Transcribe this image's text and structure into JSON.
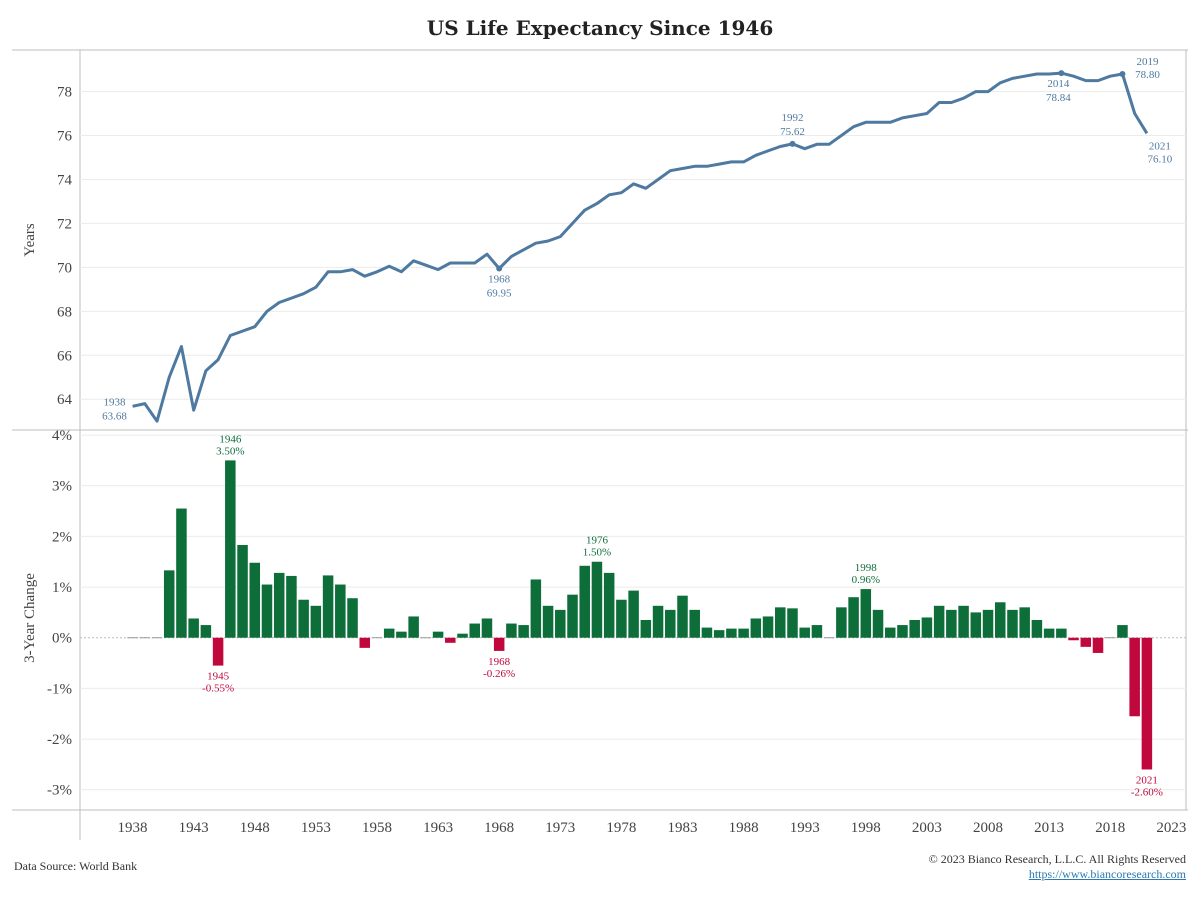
{
  "title": "US Life Expectancy Since 1946",
  "footer": {
    "source": "Data Source: World Bank",
    "copyright": "© 2023 Bianco Research, L.L.C. All Rights Reserved",
    "url": "https://www.biancoresearch.com"
  },
  "colors": {
    "line": "#4e79a0",
    "positive": "#0e6e3a",
    "negative": "#c0083d",
    "gridline": "#ececec",
    "axis": "#bdbdbd"
  },
  "chart_data": [
    {
      "type": "line",
      "ylabel": "Years",
      "ylim": [
        62.6,
        79.8
      ],
      "yticks": [
        64,
        66,
        68,
        70,
        72,
        74,
        76,
        78
      ],
      "series": [
        {
          "x": [
            1938,
            1939,
            1940,
            1941,
            1942,
            1943,
            1944,
            1945,
            1946,
            1947,
            1948,
            1949,
            1950,
            1951,
            1952,
            1953,
            1954,
            1955,
            1956,
            1957,
            1958,
            1959,
            1960,
            1961,
            1962,
            1963,
            1964,
            1965,
            1966,
            1967,
            1968,
            1969,
            1970,
            1971,
            1972,
            1973,
            1974,
            1975,
            1976,
            1977,
            1978,
            1979,
            1980,
            1981,
            1982,
            1983,
            1984,
            1985,
            1986,
            1987,
            1988,
            1989,
            1990,
            1991,
            1992,
            1993,
            1994,
            1995,
            1996,
            1997,
            1998,
            1999,
            2000,
            2001,
            2002,
            2003,
            2004,
            2005,
            2006,
            2007,
            2008,
            2009,
            2010,
            2011,
            2012,
            2013,
            2014,
            2015,
            2016,
            2017,
            2018,
            2019,
            2020,
            2021
          ],
          "values": [
            63.68,
            63.8,
            63.0,
            65.0,
            66.4,
            63.5,
            65.3,
            65.8,
            66.9,
            67.1,
            67.3,
            68.0,
            68.4,
            68.6,
            68.8,
            69.1,
            69.8,
            69.8,
            69.9,
            69.6,
            69.8,
            70.05,
            69.8,
            70.3,
            70.1,
            69.9,
            70.2,
            70.2,
            70.2,
            70.6,
            69.95,
            70.5,
            70.8,
            71.1,
            71.2,
            71.4,
            72.0,
            72.6,
            72.9,
            73.3,
            73.4,
            73.8,
            73.6,
            74.0,
            74.4,
            74.5,
            74.6,
            74.6,
            74.7,
            74.8,
            74.8,
            75.1,
            75.3,
            75.5,
            75.62,
            75.4,
            75.6,
            75.6,
            76.0,
            76.4,
            76.6,
            76.6,
            76.6,
            76.8,
            76.9,
            77.0,
            77.5,
            77.5,
            77.7,
            78.0,
            78.0,
            78.4,
            78.6,
            78.7,
            78.8,
            78.8,
            78.84,
            78.7,
            78.5,
            78.5,
            78.7,
            78.8,
            77.0,
            76.1
          ]
        }
      ],
      "annotations": [
        {
          "x": 1938,
          "y": 63.68,
          "year": "1938",
          "value": "63.68"
        },
        {
          "x": 1968,
          "y": 69.95,
          "year": "1968",
          "value": "69.95"
        },
        {
          "x": 1992,
          "y": 75.62,
          "year": "1992",
          "value": "75.62"
        },
        {
          "x": 2014,
          "y": 78.84,
          "year": "2014",
          "value": "78.84"
        },
        {
          "x": 2019,
          "y": 78.8,
          "year": "2019",
          "value": "78.80"
        },
        {
          "x": 2021,
          "y": 76.1,
          "year": "2021",
          "value": "76.10"
        }
      ]
    },
    {
      "type": "bar",
      "ylabel": "3-Year Change",
      "ylim": [
        -3.4,
        4.1
      ],
      "yticks": [
        -3,
        -2,
        -1,
        0,
        1,
        2,
        3,
        4
      ],
      "ytick_labels": [
        "-3%",
        "-2%",
        "-1%",
        "0%",
        "1%",
        "2%",
        "3%",
        "4%"
      ],
      "series": [
        {
          "x": [
            1938,
            1939,
            1940,
            1941,
            1942,
            1943,
            1944,
            1945,
            1946,
            1947,
            1948,
            1949,
            1950,
            1951,
            1952,
            1953,
            1954,
            1955,
            1956,
            1957,
            1958,
            1959,
            1960,
            1961,
            1962,
            1963,
            1964,
            1965,
            1966,
            1967,
            1968,
            1969,
            1970,
            1971,
            1972,
            1973,
            1974,
            1975,
            1976,
            1977,
            1978,
            1979,
            1980,
            1981,
            1982,
            1983,
            1984,
            1985,
            1986,
            1987,
            1988,
            1989,
            1990,
            1991,
            1992,
            1993,
            1994,
            1995,
            1996,
            1997,
            1998,
            1999,
            2000,
            2001,
            2002,
            2003,
            2004,
            2005,
            2006,
            2007,
            2008,
            2009,
            2010,
            2011,
            2012,
            2013,
            2014,
            2015,
            2016,
            2017,
            2018,
            2019,
            2020,
            2021
          ],
          "values": [
            0,
            0,
            0,
            1.33,
            2.55,
            0.38,
            0.25,
            -0.55,
            3.5,
            1.83,
            1.48,
            1.05,
            1.28,
            1.22,
            0.75,
            0.63,
            1.23,
            1.05,
            0.78,
            -0.2,
            0,
            0.18,
            0.12,
            0.42,
            0,
            0.12,
            -0.1,
            0.08,
            0.28,
            0.38,
            -0.26,
            0.28,
            0.25,
            1.15,
            0.63,
            0.55,
            0.85,
            1.42,
            1.5,
            1.28,
            0.75,
            0.93,
            0.35,
            0.63,
            0.55,
            0.83,
            0.55,
            0.2,
            0.15,
            0.18,
            0.18,
            0.38,
            0.42,
            0.6,
            0.58,
            0.2,
            0.25,
            0,
            0.6,
            0.8,
            0.96,
            0.55,
            0.2,
            0.25,
            0.35,
            0.4,
            0.63,
            0.55,
            0.63,
            0.5,
            0.55,
            0.7,
            0.55,
            0.6,
            0.35,
            0.18,
            0.18,
            -0.05,
            -0.18,
            -0.3,
            0,
            0.25,
            -1.55,
            -2.6
          ]
        }
      ],
      "annotations": [
        {
          "x": 1945,
          "y": -0.55,
          "year": "1945",
          "value": "-0.55%"
        },
        {
          "x": 1946,
          "y": 3.5,
          "year": "1946",
          "value": "3.50%"
        },
        {
          "x": 1968,
          "y": -0.26,
          "year": "1968",
          "value": "-0.26%"
        },
        {
          "x": 1976,
          "y": 1.5,
          "year": "1976",
          "value": "1.50%"
        },
        {
          "x": 1998,
          "y": 0.96,
          "year": "1998",
          "value": "0.96%"
        },
        {
          "x": 2021,
          "y": -2.6,
          "year": "2021",
          "value": "-2.60%"
        }
      ]
    }
  ],
  "x_axis": {
    "ticks": [
      1938,
      1943,
      1948,
      1953,
      1958,
      1963,
      1968,
      1973,
      1978,
      1983,
      1988,
      1993,
      1998,
      2003,
      2008,
      2013,
      2018,
      2023
    ],
    "xlim": [
      1933.7,
      2024.2
    ]
  }
}
